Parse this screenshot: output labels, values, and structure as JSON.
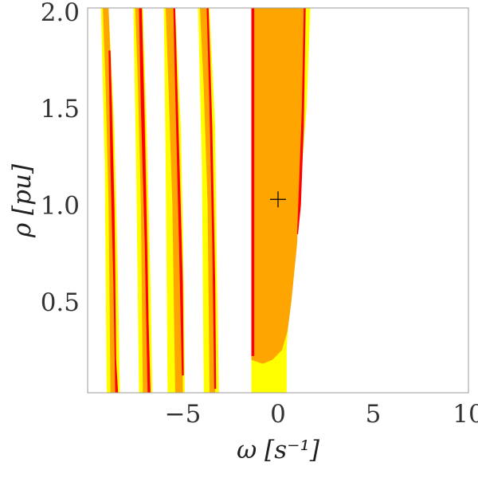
{
  "chart_data": {
    "type": "heatmap",
    "title": "",
    "xlabel": "ω [s⁻¹]",
    "ylabel": "ρ [pu]",
    "xlim": [
      -10,
      10
    ],
    "ylim": [
      0.03,
      2.02
    ],
    "xticks": [
      {
        "value": -5,
        "label": "−5"
      },
      {
        "value": 0,
        "label": "0"
      },
      {
        "value": 5,
        "label": "5"
      },
      {
        "value": 10,
        "label": "10"
      }
    ],
    "yticks": [
      {
        "value": 0.5,
        "label": "0.5"
      },
      {
        "value": 1.0,
        "label": "1.0"
      },
      {
        "value": 1.5,
        "label": "1.5"
      },
      {
        "value": 2.0,
        "label": "2.0"
      }
    ],
    "colors": {
      "yellow": "#ffff00",
      "orange": "#ffa500",
      "red": "#ff0000",
      "marker": "#000000",
      "frame": "#999999"
    },
    "marker": {
      "symbol": "+",
      "x": 0.0,
      "y": 1.03
    },
    "regions": [
      {
        "name": "band-1",
        "color": "yellow",
        "points": [
          [
            -9.3,
            2.02
          ],
          [
            -8.9,
            2.02
          ],
          [
            -8.6,
            1.4
          ],
          [
            -8.4,
            0.6
          ],
          [
            -8.3,
            0.03
          ],
          [
            -9.0,
            0.03
          ],
          [
            -9.1,
            1.2
          ]
        ]
      },
      {
        "name": "band-1",
        "color": "orange",
        "points": [
          [
            -9.2,
            2.02
          ],
          [
            -8.9,
            2.02
          ],
          [
            -8.7,
            1.5
          ],
          [
            -8.55,
            0.8
          ],
          [
            -8.5,
            0.03
          ],
          [
            -8.8,
            0.03
          ],
          [
            -8.9,
            1.0
          ],
          [
            -9.05,
            1.6
          ]
        ]
      },
      {
        "name": "band-1",
        "color": "red",
        "points": [
          [
            -8.9,
            1.8
          ],
          [
            -8.8,
            1.8
          ],
          [
            -8.6,
            1.0
          ],
          [
            -8.5,
            0.2
          ],
          [
            -8.4,
            0.03
          ],
          [
            -8.55,
            0.03
          ],
          [
            -8.65,
            0.6
          ],
          [
            -8.8,
            1.2
          ]
        ]
      },
      {
        "name": "band-2",
        "color": "yellow",
        "points": [
          [
            -7.6,
            2.02
          ],
          [
            -7.1,
            2.02
          ],
          [
            -6.9,
            1.4
          ],
          [
            -6.7,
            0.6
          ],
          [
            -6.6,
            0.03
          ],
          [
            -7.3,
            0.03
          ],
          [
            -7.45,
            1.2
          ]
        ]
      },
      {
        "name": "band-2",
        "color": "orange",
        "points": [
          [
            -7.5,
            2.02
          ],
          [
            -7.15,
            2.02
          ],
          [
            -7.0,
            1.5
          ],
          [
            -6.85,
            0.8
          ],
          [
            -6.75,
            0.03
          ],
          [
            -7.1,
            0.03
          ],
          [
            -7.2,
            1.0
          ],
          [
            -7.35,
            1.6
          ]
        ]
      },
      {
        "name": "band-2",
        "color": "red",
        "points": [
          [
            -7.3,
            2.02
          ],
          [
            -7.15,
            2.02
          ],
          [
            -7.0,
            1.4
          ],
          [
            -6.8,
            0.4
          ],
          [
            -6.7,
            0.03
          ],
          [
            -6.85,
            0.03
          ],
          [
            -7.0,
            0.8
          ],
          [
            -7.2,
            1.5
          ]
        ]
      },
      {
        "name": "band-3",
        "color": "yellow",
        "points": [
          [
            -6.0,
            2.02
          ],
          [
            -5.4,
            2.02
          ],
          [
            -5.1,
            1.4
          ],
          [
            -4.95,
            0.6
          ],
          [
            -4.9,
            0.03
          ],
          [
            -5.8,
            0.03
          ],
          [
            -5.9,
            1.2
          ]
        ]
      },
      {
        "name": "band-3",
        "color": "orange",
        "points": [
          [
            -5.9,
            2.02
          ],
          [
            -5.45,
            2.02
          ],
          [
            -5.25,
            1.5
          ],
          [
            -5.05,
            0.8
          ],
          [
            -5.0,
            0.03
          ],
          [
            -5.4,
            0.03
          ],
          [
            -5.55,
            1.0
          ],
          [
            -5.75,
            1.6
          ]
        ]
      },
      {
        "name": "band-3",
        "color": "red",
        "points": [
          [
            -5.5,
            2.02
          ],
          [
            -5.4,
            2.02
          ],
          [
            -5.2,
            1.3
          ],
          [
            -5.0,
            0.6
          ],
          [
            -4.95,
            0.12
          ],
          [
            -5.05,
            0.12
          ],
          [
            -5.2,
            0.8
          ],
          [
            -5.4,
            1.6
          ]
        ]
      },
      {
        "name": "band-4",
        "color": "yellow",
        "points": [
          [
            -4.2,
            2.02
          ],
          [
            -3.6,
            2.02
          ],
          [
            -3.3,
            1.4
          ],
          [
            -3.2,
            0.6
          ],
          [
            -3.1,
            0.03
          ],
          [
            -3.9,
            0.03
          ],
          [
            -4.0,
            1.2
          ]
        ]
      },
      {
        "name": "band-4",
        "color": "orange",
        "points": [
          [
            -4.1,
            2.02
          ],
          [
            -3.65,
            2.02
          ],
          [
            -3.5,
            1.5
          ],
          [
            -3.35,
            0.8
          ],
          [
            -3.3,
            0.03
          ],
          [
            -3.6,
            0.03
          ],
          [
            -3.7,
            1.0
          ],
          [
            -3.9,
            1.6
          ]
        ]
      },
      {
        "name": "band-4",
        "color": "red",
        "points": [
          [
            -3.75,
            2.02
          ],
          [
            -3.65,
            2.02
          ],
          [
            -3.45,
            1.4
          ],
          [
            -3.3,
            0.6
          ],
          [
            -3.25,
            0.05
          ],
          [
            -3.35,
            0.05
          ],
          [
            -3.45,
            0.8
          ],
          [
            -3.6,
            1.5
          ]
        ]
      },
      {
        "name": "band-main",
        "color": "yellow",
        "points": [
          [
            -1.4,
            2.02
          ],
          [
            1.7,
            2.02
          ],
          [
            1.5,
            1.5
          ],
          [
            1.1,
            1.0
          ],
          [
            0.6,
            0.5
          ],
          [
            0.45,
            0.25
          ],
          [
            0.45,
            0.03
          ],
          [
            -1.4,
            0.03
          ]
        ]
      },
      {
        "name": "band-main",
        "color": "orange",
        "points": [
          [
            -1.4,
            2.02
          ],
          [
            1.4,
            2.02
          ],
          [
            1.3,
            1.5
          ],
          [
            1.0,
            0.8
          ],
          [
            0.7,
            0.5
          ],
          [
            0.5,
            0.35
          ],
          [
            0.2,
            0.25
          ],
          [
            -0.3,
            0.2
          ],
          [
            -0.8,
            0.18
          ],
          [
            -1.4,
            0.2
          ]
        ]
      },
      {
        "name": "band-main",
        "color": "red",
        "points": [
          [
            -1.4,
            2.02
          ],
          [
            -1.25,
            2.02
          ],
          [
            -1.25,
            0.22
          ],
          [
            -1.4,
            0.22
          ]
        ]
      },
      {
        "name": "band-main",
        "color": "red",
        "points": [
          [
            1.35,
            2.02
          ],
          [
            1.45,
            2.02
          ],
          [
            1.35,
            1.4
          ],
          [
            1.2,
            1.0
          ],
          [
            1.05,
            0.85
          ],
          [
            1.0,
            0.85
          ],
          [
            1.1,
            1.1
          ],
          [
            1.25,
            1.5
          ]
        ]
      }
    ]
  }
}
